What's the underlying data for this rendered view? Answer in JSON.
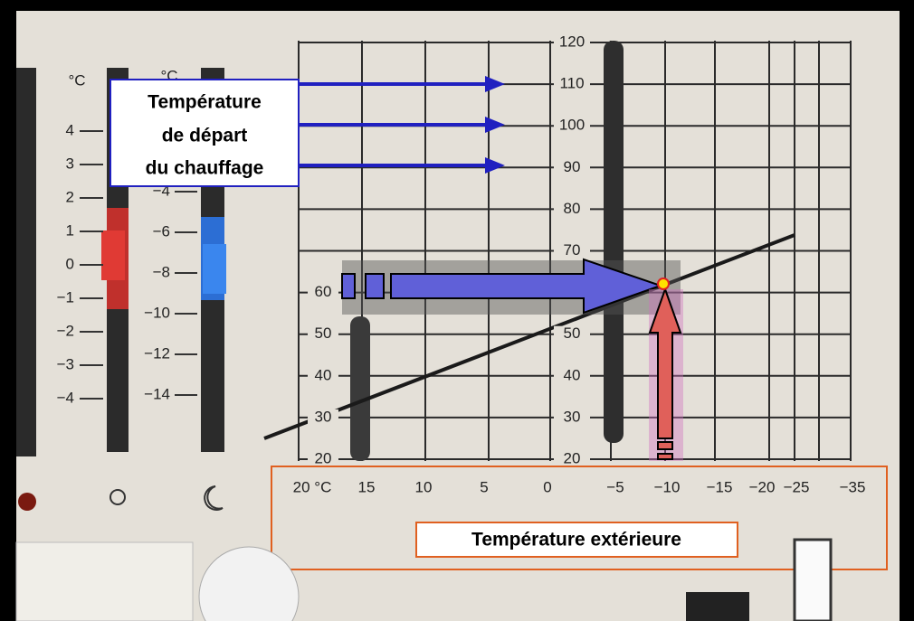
{
  "annotations": {
    "flow_label": [
      "Température",
      "de départ",
      "du chauffage"
    ],
    "outdoor_label": "Température extérieure"
  },
  "scales": {
    "flow_right": [
      "120",
      "110",
      "100",
      "90",
      "80",
      "70",
      "60",
      "50",
      "40",
      "30",
      "20"
    ],
    "flow_left": [
      "60",
      "50",
      "40",
      "30",
      "20"
    ],
    "outdoor": [
      "20 °C",
      "15",
      "10",
      "5",
      "0",
      "−5",
      "−10",
      "−15",
      "−20",
      "−25",
      "−35"
    ],
    "day": {
      "unit": "°C",
      "labels": [
        "4",
        "3",
        "2",
        "1",
        "0",
        "−1",
        "−2",
        "−3",
        "−4"
      ]
    },
    "night": {
      "unit": "°C",
      "labels": [
        "−4",
        "−6",
        "−8",
        "−10",
        "−12",
        "−14"
      ]
    }
  }
}
